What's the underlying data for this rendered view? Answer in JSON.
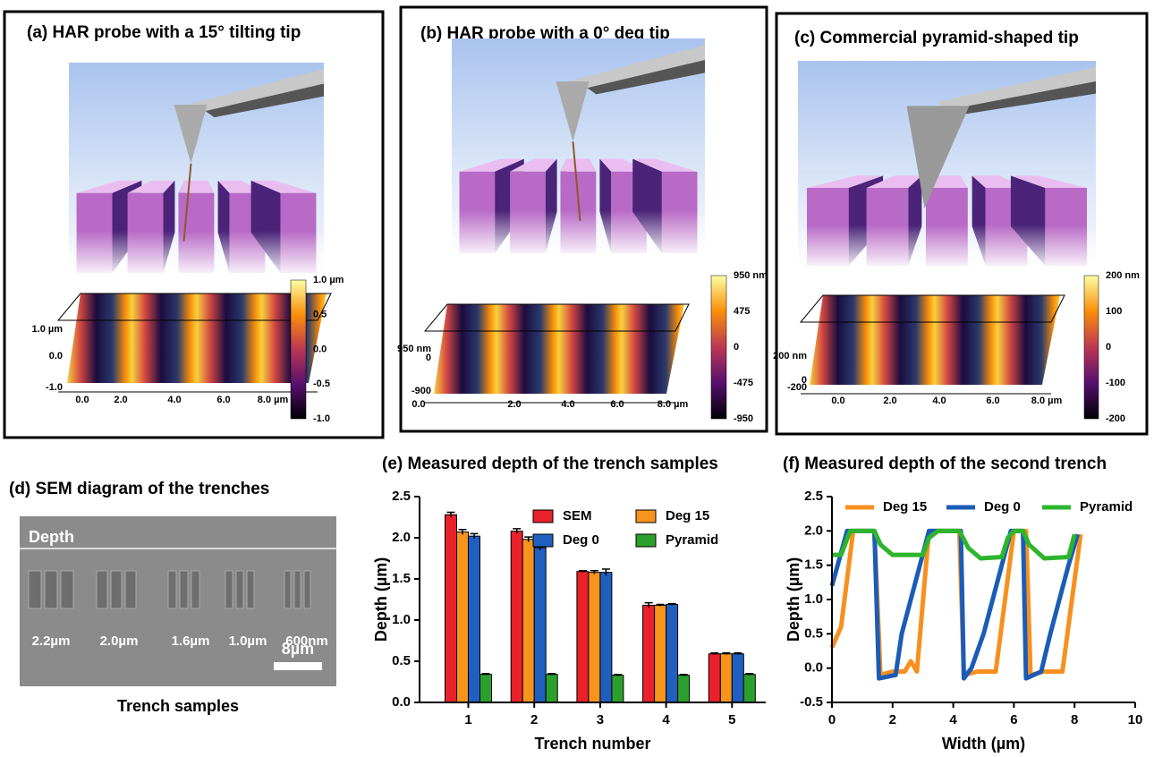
{
  "panels": [
    {
      "title": "(a)  HAR probe with a 15° tilting tip",
      "colorbar": [
        "1.0 µm",
        "0.5",
        "0.0",
        "-0.5",
        "-1.0"
      ],
      "z_labels": [
        "1.0 µm",
        "0.0",
        "-1.0"
      ],
      "x_labels": [
        "0.0",
        "2.0",
        "4.0",
        "6.0",
        "8.0 µm"
      ]
    },
    {
      "title": "(b)  HAR probe with a 0° deg tip",
      "colorbar": [
        "950 nm",
        "475",
        "0",
        "-475",
        "-950"
      ],
      "z_labels": [
        "950 nm",
        "0",
        "-900"
      ],
      "x_labels": [
        "0.0",
        "2.0",
        "4.0",
        "6.0",
        "8.0 µm"
      ]
    },
    {
      "title": "(c)  Commercial pyramid-shaped tip",
      "colorbar": [
        "200 nm",
        "100",
        "0",
        "-100",
        "-200"
      ],
      "z_labels": [
        "200 nm",
        "0",
        "-200"
      ],
      "x_labels": [
        "0.0",
        "2.0",
        "4.0",
        "6.0",
        "8.0 µm"
      ]
    }
  ],
  "sem": {
    "title": "(d) SEM diagram of the trenches",
    "depth": "Depth",
    "sizes": [
      "2.2µm",
      "2.0µm",
      "1.6µm",
      "1.0µm",
      "600nm"
    ],
    "scale": "8µm",
    "caption": "Trench samples"
  },
  "chart_data": [
    {
      "type": "bar",
      "title": "(e)  Measured depth of the trench samples",
      "x_label": "Trench number",
      "y_label": "Depth (µm)",
      "categories": [
        1,
        2,
        3,
        4,
        5
      ],
      "series": [
        {
          "name": "SEM",
          "color": "#e8212a",
          "values": [
            2.28,
            2.08,
            1.59,
            1.18,
            0.59
          ],
          "errors": [
            0.03,
            0.03,
            0.01,
            0.03,
            0.01
          ]
        },
        {
          "name": "Deg 15",
          "color": "#f7941d",
          "values": [
            2.07,
            1.98,
            1.58,
            1.18,
            0.59
          ],
          "errors": [
            0.03,
            0.03,
            0.02,
            0.01,
            0.01
          ]
        },
        {
          "name": "Deg 0",
          "color": "#1f5fbf",
          "values": [
            2.02,
            1.88,
            1.58,
            1.19,
            0.59
          ],
          "errors": [
            0.03,
            0.03,
            0.04,
            0.01,
            0.01
          ]
        },
        {
          "name": "Pyramid",
          "color": "#2ca02c",
          "values": [
            0.34,
            0.34,
            0.33,
            0.33,
            0.34
          ],
          "errors": [
            0.01,
            0.01,
            0.01,
            0.01,
            0.01
          ]
        }
      ],
      "ylim": [
        0,
        2.5
      ],
      "yticks": [
        {
          "value": 0,
          "label": "0.0"
        },
        0.5,
        {
          "value": 1,
          "label": "1.0"
        },
        1.5,
        {
          "value": 2,
          "label": "2.0"
        },
        2.5
      ]
    },
    {
      "type": "line",
      "title": "(f)  Measured depth of the second trench",
      "x_label": "Width (µm)",
      "y_label": "Depth (µm)",
      "series": [
        {
          "name": "Deg 15",
          "color": "#f7901e",
          "x": [
            0,
            0.3,
            0.7,
            1.4,
            1.6,
            2.0,
            2.4,
            2.6,
            2.8,
            3.2,
            4.2,
            4.35,
            4.8,
            5.4,
            6.0,
            6.4,
            6.55,
            7.0,
            7.6,
            8.2
          ],
          "values": [
            0.3,
            0.6,
            2.0,
            2.0,
            -0.1,
            -0.05,
            -0.05,
            0.1,
            -0.05,
            2.0,
            2.0,
            -0.1,
            -0.05,
            -0.05,
            2.0,
            2.0,
            -0.1,
            -0.05,
            -0.05,
            1.95
          ]
        },
        {
          "name": "Deg 0",
          "color": "#1a5cb8",
          "x": [
            0,
            0.5,
            1.4,
            1.55,
            2.1,
            2.3,
            2.6,
            2.9,
            3.2,
            4.25,
            4.35,
            4.6,
            5.0,
            5.3,
            5.6,
            5.9,
            6.3,
            6.4,
            6.9,
            7.2,
            7.5,
            7.8,
            8.1
          ],
          "values": [
            1.2,
            2.0,
            2.0,
            -0.15,
            -0.1,
            0.5,
            1.0,
            1.5,
            2.0,
            2.0,
            -0.15,
            0.0,
            0.5,
            1.0,
            1.5,
            2.0,
            2.0,
            -0.15,
            -0.05,
            0.5,
            1.0,
            1.5,
            1.95
          ]
        },
        {
          "name": "Pyramid",
          "color": "#2db52d",
          "x": [
            0,
            0.3,
            0.6,
            1.4,
            1.6,
            2.0,
            3.0,
            3.2,
            3.5,
            4.2,
            4.5,
            4.9,
            5.6,
            5.8,
            6.0,
            6.3,
            6.5,
            7.0,
            7.8,
            8.0
          ],
          "values": [
            1.65,
            1.65,
            2.0,
            2.0,
            1.8,
            1.65,
            1.65,
            1.9,
            2.0,
            2.0,
            1.75,
            1.6,
            1.62,
            1.9,
            2.0,
            2.0,
            1.8,
            1.6,
            1.62,
            1.95
          ]
        }
      ],
      "xlim": [
        0,
        10
      ],
      "xticks": [
        0,
        2,
        4,
        6,
        8,
        10
      ],
      "ylim": [
        -0.5,
        2.5
      ],
      "yticks": [
        -0.5,
        {
          "value": 0,
          "label": "0.0"
        },
        0.5,
        {
          "value": 1,
          "label": "1.0"
        },
        1.5,
        {
          "value": 2,
          "label": "2.0"
        },
        2.5
      ]
    }
  ]
}
